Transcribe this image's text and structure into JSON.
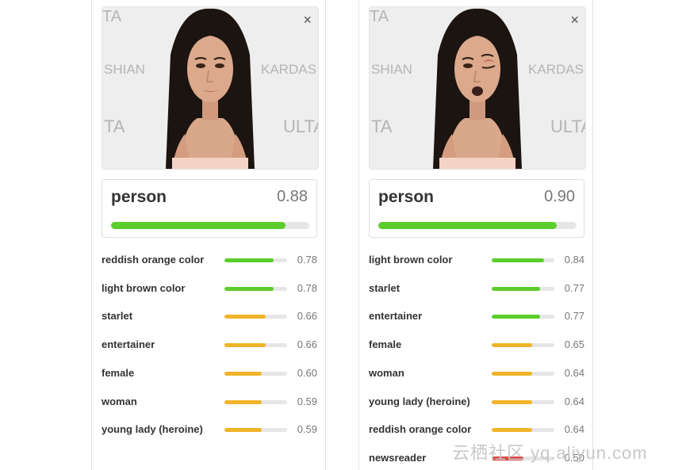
{
  "panels": [
    {
      "top_tag": {
        "label": "person",
        "score": "0.88",
        "fraction": 0.88
      },
      "tags": [
        {
          "label": "reddish orange color",
          "score": "0.78",
          "fraction": 0.78,
          "color": "#5ccd2c"
        },
        {
          "label": "light brown color",
          "score": "0.78",
          "fraction": 0.78,
          "color": "#5ccd2c"
        },
        {
          "label": "starlet",
          "score": "0.66",
          "fraction": 0.66,
          "color": "#f0b429"
        },
        {
          "label": "entertainer",
          "score": "0.66",
          "fraction": 0.66,
          "color": "#f0b429"
        },
        {
          "label": "female",
          "score": "0.60",
          "fraction": 0.6,
          "color": "#f0b429"
        },
        {
          "label": "woman",
          "score": "0.59",
          "fraction": 0.59,
          "color": "#f0b429"
        },
        {
          "label": "young lady (heroine)",
          "score": "0.59",
          "fraction": 0.59,
          "color": "#f0b429"
        }
      ]
    },
    {
      "top_tag": {
        "label": "person",
        "score": "0.90",
        "fraction": 0.9
      },
      "tags": [
        {
          "label": "light brown color",
          "score": "0.84",
          "fraction": 0.84,
          "color": "#5ccd2c"
        },
        {
          "label": "starlet",
          "score": "0.77",
          "fraction": 0.77,
          "color": "#5ccd2c"
        },
        {
          "label": "entertainer",
          "score": "0.77",
          "fraction": 0.77,
          "color": "#5ccd2c"
        },
        {
          "label": "female",
          "score": "0.65",
          "fraction": 0.65,
          "color": "#f0b429"
        },
        {
          "label": "woman",
          "score": "0.64",
          "fraction": 0.64,
          "color": "#f0b429"
        },
        {
          "label": "young lady (heroine)",
          "score": "0.64",
          "fraction": 0.64,
          "color": "#f0b429"
        },
        {
          "label": "reddish orange color",
          "score": "0.64",
          "fraction": 0.64,
          "color": "#f0b429"
        },
        {
          "label": "newsreader",
          "score": "0.50",
          "fraction": 0.5,
          "color": "#e04040"
        }
      ]
    }
  ],
  "backdrop_words": [
    "TA",
    "SHIAN",
    "KARDAS",
    "ULTA"
  ],
  "close_icon": "×",
  "watermark": "云栖社区 yq.aliyun.com"
}
